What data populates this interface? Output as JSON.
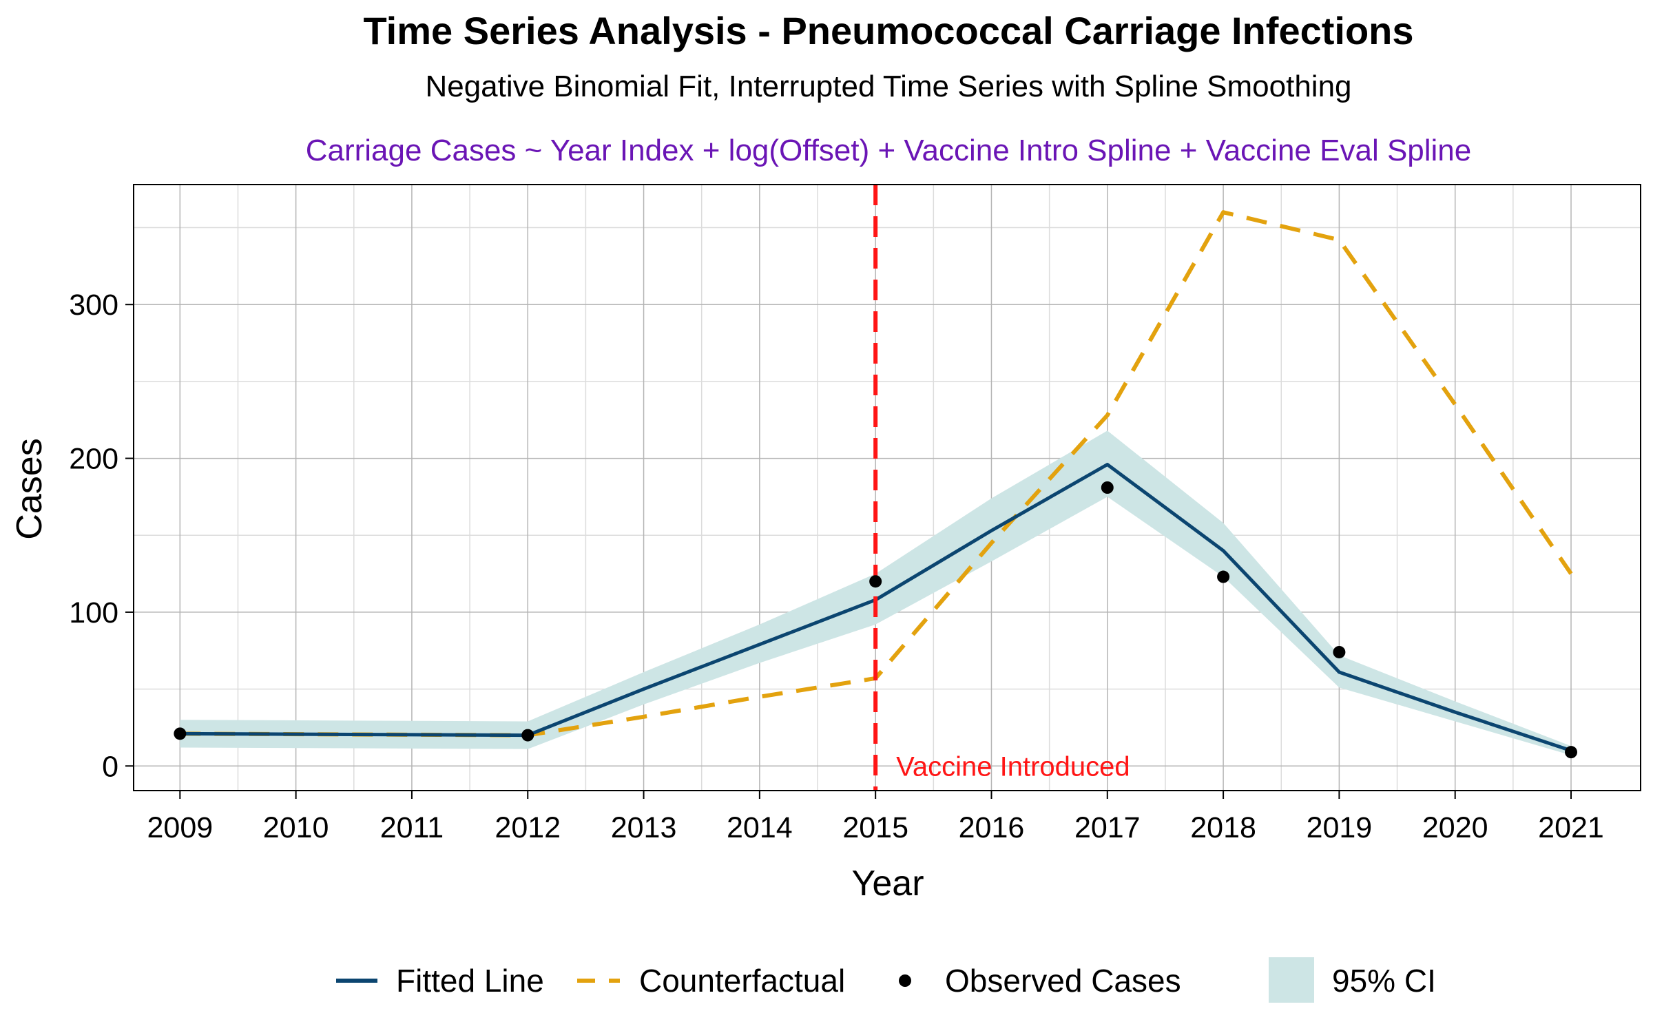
{
  "colors": {
    "fitted": "#0b4570",
    "counterfactual": "#e3a20e",
    "observed": "#000000",
    "ci_fill": "#cde5e5",
    "vline": "#ff1515",
    "formula": "#6a15b5",
    "annotation": "#ff1515"
  },
  "chart_data": {
    "type": "line",
    "title": "Time Series Analysis - Pneumococcal Carriage Infections",
    "subtitle": "Negative Binomial Fit, Interrupted Time Series with Spline Smoothing",
    "formula": "Carriage Cases ~ Year Index + log(Offset) + Vaccine Intro Spline + Vaccine Eval Spline",
    "xlabel": "Year",
    "ylabel": "Cases",
    "xlim": [
      2008.6,
      2021.6
    ],
    "ylim": [
      -16,
      378
    ],
    "x_ticks": [
      2009,
      2010,
      2011,
      2012,
      2013,
      2014,
      2015,
      2016,
      2017,
      2018,
      2019,
      2020,
      2021
    ],
    "y_ticks": [
      0,
      100,
      200,
      300
    ],
    "grid": true,
    "legend_position": "bottom",
    "series": [
      {
        "name": "Fitted Line",
        "style": "solid",
        "x": [
          2009,
          2012,
          2013,
          2014,
          2015,
          2016,
          2017,
          2018,
          2019,
          2020,
          2021
        ],
        "values": [
          21,
          20,
          50,
          79,
          108,
          153,
          196,
          140,
          61,
          35,
          10
        ]
      },
      {
        "name": "Counterfactual",
        "style": "dashed",
        "x": [
          2009,
          2012,
          2013,
          2014,
          2015,
          2016,
          2017,
          2018,
          2019,
          2020,
          2021
        ],
        "values": [
          21,
          20,
          32,
          45,
          57,
          145,
          228,
          360,
          342,
          235,
          125
        ]
      },
      {
        "name": "Observed Cases",
        "style": "points",
        "x": [
          2009,
          2012,
          2015,
          2017,
          2018,
          2019,
          2021
        ],
        "values": [
          21,
          20,
          120,
          181,
          123,
          74,
          9
        ]
      }
    ],
    "ci": {
      "name": "95% CI",
      "x": [
        2009,
        2012,
        2013,
        2014,
        2015,
        2016,
        2017,
        2018,
        2019,
        2020,
        2021
      ],
      "lower": [
        12,
        11,
        40,
        67,
        92,
        133,
        175,
        123,
        51,
        29,
        7
      ],
      "upper": [
        30,
        29,
        61,
        92,
        125,
        174,
        218,
        158,
        72,
        42,
        13
      ]
    },
    "annotations": [
      {
        "type": "vline",
        "x": 2015,
        "label": "Vaccine Introduced"
      }
    ]
  }
}
